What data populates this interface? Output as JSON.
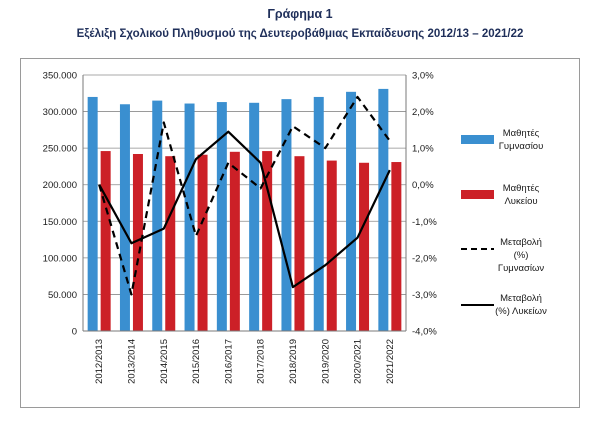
{
  "figure": {
    "label": "Γράφημα 1",
    "title": "Εξέλιξη Σχολικού Πληθυσμού της Δευτεροβάθμιας Εκπαίδευσης 2012/13 – 2021/22"
  },
  "chart_data": {
    "type": "bar",
    "categories": [
      "2012/2013",
      "2013/2014",
      "2014/2015",
      "2015/2016",
      "2016/2017",
      "2017/2018",
      "2018/2019",
      "2019/2020",
      "2020/2021",
      "2021/2022"
    ],
    "series": [
      {
        "name": "Μαθητές Γυμνασίου",
        "type": "bar",
        "axis": "left",
        "color": "#3a8fd0",
        "values": [
          320000,
          310000,
          315000,
          311000,
          313000,
          312000,
          317000,
          320000,
          327000,
          331000
        ]
      },
      {
        "name": "Μαθητές Λυκείου",
        "type": "bar",
        "axis": "left",
        "color": "#cc2027",
        "values": [
          246000,
          242000,
          239000,
          241000,
          245000,
          246000,
          239000,
          233000,
          230000,
          231000
        ]
      },
      {
        "name": "Μεταβολή (%) Γυμνασίων",
        "type": "line",
        "axis": "right",
        "style": "dashed",
        "color": "#000000",
        "values": [
          0.0,
          -3.0,
          1.7,
          -1.4,
          0.6,
          -0.1,
          1.6,
          1.0,
          2.4,
          1.2
        ]
      },
      {
        "name": "Μεταβολή (%) Λυκείων",
        "type": "line",
        "axis": "right",
        "style": "solid",
        "color": "#000000",
        "values": [
          0.0,
          -1.6,
          -1.2,
          0.7,
          1.45,
          0.6,
          -2.8,
          -2.2,
          -1.45,
          0.4
        ]
      }
    ],
    "y_left": {
      "ylim": [
        0,
        350000
      ],
      "ticks": [
        0,
        50000,
        100000,
        150000,
        200000,
        250000,
        300000,
        350000
      ],
      "tick_labels": [
        "0",
        "50.000",
        "100.000",
        "150.000",
        "200.000",
        "250.000",
        "300.000",
        "350.000"
      ]
    },
    "y_right": {
      "ylim": [
        -4,
        3
      ],
      "ticks": [
        -4,
        -3,
        -2,
        -1,
        0,
        1,
        2,
        3
      ],
      "tick_labels": [
        "-4,0%",
        "-3,0%",
        "-2,0%",
        "-1,0%",
        "0,0%",
        "1,0%",
        "2,0%",
        "3,0%"
      ]
    },
    "grid": true,
    "legend": {
      "position": "right",
      "items": [
        {
          "key": "bar-blue",
          "lines": [
            "Μαθητές",
            "Γυμνασίου"
          ]
        },
        {
          "key": "bar-red",
          "lines": [
            "Μαθητές",
            "Λυκείου"
          ]
        },
        {
          "key": "line-dashed",
          "lines": [
            "Μεταβολή",
            "(%)",
            "Γυμνασίων"
          ]
        },
        {
          "key": "line-solid",
          "lines": [
            "Μεταβολή",
            "(%) Λυκείων"
          ]
        }
      ]
    }
  }
}
